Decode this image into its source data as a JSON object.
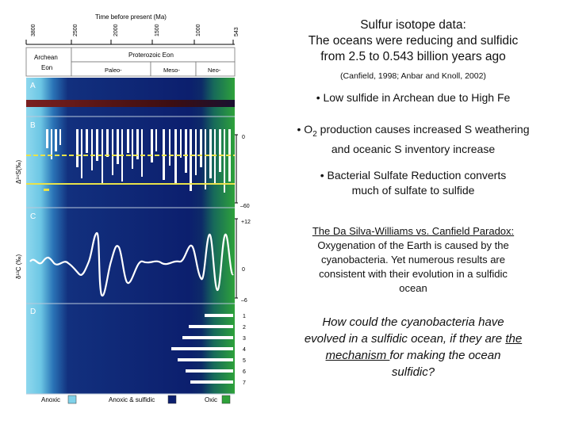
{
  "figure": {
    "time_label": "Time before present (Ma)",
    "time_ticks": [
      "3800",
      "2500",
      "2000",
      "1500",
      "1000",
      "543"
    ],
    "eon_archean": "Archean",
    "eon_archean2": "Eon",
    "eon_proterozoic": "Proterozoic Eon",
    "era_paleo": "Paleo-",
    "era_meso": "Meso-",
    "era_neo": "Neo-",
    "panel_a": "A",
    "panel_b": "B",
    "panel_c": "C",
    "panel_d": "D",
    "axis_b_ylabel": "Δ³⁴S(‰)",
    "axis_c_ylabel": "δ¹³C (‰)",
    "b_tick_0": "0",
    "b_tick_m60": "–60",
    "c_tick_12": "+12",
    "c_tick_0": "0",
    "c_tick_m6": "–6",
    "d_ticks": [
      "1",
      "2",
      "3",
      "4",
      "5",
      "6",
      "7"
    ],
    "legend_anoxic": "Anoxic",
    "legend_sulfidic": "Anoxic & sulfidic",
    "legend_oxic": "Oxic",
    "colors": {
      "anoxic": "#7fd2ea",
      "sulfidic": "#0c1f6e",
      "oxic": "#2ea23a",
      "bar_a": "#6e1c1c",
      "yellow": "#e8e24a"
    }
  },
  "text": {
    "title_1": "Sulfur isotope data:",
    "title_2": "The oceans were reducing and sulfidic",
    "title_3": "from 2.5 to 0.543 billion years ago",
    "citation": "(Canfield, 1998; Anbar and Knoll, 2002)",
    "bullet_1": "• Low sulfide in Archean due to High Fe",
    "bullet_2_pre": "• O",
    "bullet_2_sub": "2",
    "bullet_2_post": " production causes increased S weathering",
    "bullet_2_line2": "and oceanic S inventory increase",
    "bullet_3_line1": "• Bacterial Sulfate Reduction converts",
    "bullet_3_line2": "much of sulfate to sulfide",
    "paradox_heading": "The Da Silva-Williams vs. Canfield Paradox:",
    "paradox_1": "Oxygenation of the Earth is caused by the",
    "paradox_2": "cyanobacteria. Yet numerous results are",
    "paradox_3": "consistent with their evolution in a sulfidic",
    "paradox_4": "ocean",
    "question_1": "How could the cyanobacteria have",
    "question_2a": "evolved in a sulfidic ocean, if they are ",
    "question_2b": "the",
    "question_3a": "mechanism ",
    "question_3b": "for making the ocean",
    "question_4": "sulfidic?"
  }
}
